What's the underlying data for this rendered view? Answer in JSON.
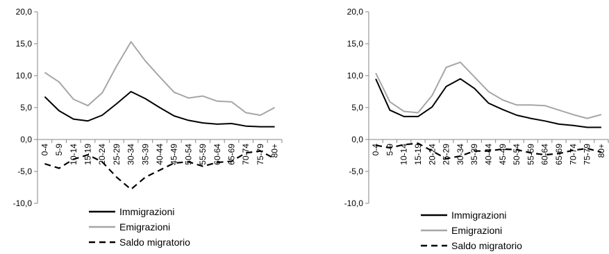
{
  "chart_data": [
    {
      "type": "line",
      "categories": [
        "0-4",
        "5-9",
        "10-14",
        "15-19",
        "20-24",
        "25-29",
        "30-34",
        "35-39",
        "40-44",
        "45-49",
        "50-54",
        "55-59",
        "60-64",
        "65-69",
        "70-74",
        "75-79",
        "80+"
      ],
      "ylim": [
        -10,
        20
      ],
      "yticks": [
        "20,0",
        "15,0",
        "10,0",
        "5,0",
        "0,0",
        "-5,0",
        "-10,0"
      ],
      "grid": false,
      "legend_position": "bottom",
      "series": [
        {
          "name": "Immigrazioni",
          "color": "#000000",
          "dash": "solid",
          "values": [
            6.7,
            4.5,
            3.2,
            2.9,
            3.8,
            5.6,
            7.5,
            6.4,
            5.0,
            3.7,
            3.0,
            2.6,
            2.4,
            2.5,
            2.1,
            2.0,
            2.0
          ]
        },
        {
          "name": "Emigrazioni",
          "color": "#a6a6a6",
          "dash": "solid",
          "values": [
            10.5,
            9.0,
            6.3,
            5.3,
            7.3,
            11.5,
            15.3,
            12.3,
            9.8,
            7.4,
            6.5,
            6.8,
            6.0,
            5.9,
            4.2,
            3.8,
            5.0
          ]
        },
        {
          "name": "Saldo migratorio",
          "color": "#000000",
          "dash": "dashed",
          "values": [
            -3.8,
            -4.5,
            -3.1,
            -2.4,
            -3.5,
            -5.9,
            -7.8,
            -5.9,
            -4.8,
            -3.7,
            -3.5,
            -4.2,
            -3.6,
            -3.4,
            -2.1,
            -1.8,
            -3.0
          ]
        }
      ]
    },
    {
      "type": "line",
      "categories": [
        "0-4",
        "5-9",
        "10-14",
        "15-19",
        "20-24",
        "25-29",
        "30-34",
        "35-39",
        "40-44",
        "45-49",
        "50-54",
        "55-59",
        "60-64",
        "65-69",
        "70-74",
        "75-79",
        "80+"
      ],
      "ylim": [
        -10,
        20
      ],
      "yticks": [
        "20,0",
        "15,0",
        "10,0",
        "5,0",
        "0,0",
        "-5,0",
        "-10,0"
      ],
      "grid": false,
      "legend_position": "bottom",
      "series": [
        {
          "name": "Immigrazioni",
          "color": "#000000",
          "dash": "solid",
          "values": [
            9.5,
            4.6,
            3.6,
            3.6,
            5.1,
            8.3,
            9.5,
            8.0,
            5.7,
            4.7,
            3.8,
            3.3,
            2.9,
            2.4,
            2.2,
            1.9,
            1.9
          ]
        },
        {
          "name": "Emigrazioni",
          "color": "#a6a6a6",
          "dash": "solid",
          "values": [
            10.4,
            5.9,
            4.4,
            4.2,
            6.9,
            11.3,
            12.1,
            9.8,
            7.5,
            6.2,
            5.4,
            5.4,
            5.3,
            4.6,
            3.9,
            3.3,
            3.9
          ]
        },
        {
          "name": "Saldo migratorio",
          "color": "#000000",
          "dash": "dashed",
          "values": [
            -0.9,
            -1.3,
            -0.8,
            -0.6,
            -1.8,
            -3.0,
            -2.6,
            -1.8,
            -1.8,
            -1.5,
            -1.6,
            -2.1,
            -2.4,
            -2.2,
            -1.7,
            -1.4,
            -2.0
          ]
        }
      ]
    }
  ]
}
